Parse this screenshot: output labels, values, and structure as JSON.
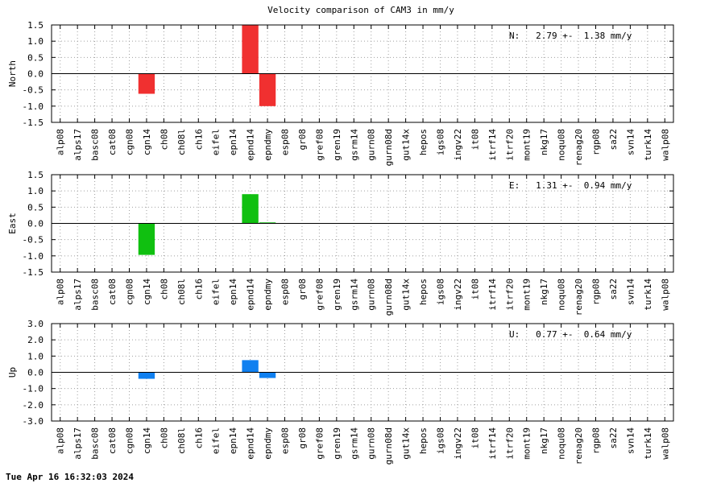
{
  "title": "Velocity comparison of CAM3 in mm/y",
  "footer": "Tue Apr 16 16:32:03 2024",
  "categories": [
    "alp08",
    "alps17",
    "basc08",
    "cat08",
    "cgn08",
    "cgn14",
    "ch08",
    "ch08l",
    "ch16",
    "eifel",
    "epn14",
    "epnd14",
    "epndmy",
    "esp08",
    "gr08",
    "gref08",
    "gren19",
    "gsrm14",
    "gurn08",
    "gurn08d",
    "gut14x",
    "hepos",
    "igs08",
    "ingv22",
    "it08",
    "itrf14",
    "itrf20",
    "mont19",
    "nkg17",
    "noqu08",
    "renag20",
    "rgp08",
    "sa22",
    "svn14",
    "turk14",
    "walp08"
  ],
  "chart_data": [
    {
      "type": "bar",
      "ylabel": "North",
      "ylim": [
        -1.5,
        1.5
      ],
      "yticks": [
        "1.5",
        "1.0",
        "0.5",
        "0.0",
        "-0.5",
        "-1.0",
        "-1.5"
      ],
      "color": "#f03030",
      "stat_text": "N:   2.79 +-  1.38 mm/y",
      "grid": true,
      "values": [
        0,
        0,
        0,
        0,
        0,
        -0.62,
        0,
        0,
        0,
        0,
        0,
        1.5,
        -1.0,
        0,
        0,
        0,
        0,
        0,
        0,
        0,
        0,
        0,
        0,
        0,
        0,
        0,
        0,
        0,
        0,
        0,
        0,
        0,
        0,
        0,
        0,
        0
      ]
    },
    {
      "type": "bar",
      "ylabel": "East",
      "ylim": [
        -1.5,
        1.5
      ],
      "yticks": [
        "1.5",
        "1.0",
        "0.5",
        "0.0",
        "-0.5",
        "-1.0",
        "-1.5"
      ],
      "color": "#10c010",
      "stat_text": "E:   1.31 +-  0.94 mm/y",
      "grid": true,
      "values": [
        0,
        0,
        0,
        0,
        0,
        -0.97,
        0,
        0,
        0,
        0,
        0,
        0.9,
        0.03,
        0,
        0,
        0,
        0,
        0,
        0,
        0,
        0,
        0,
        0,
        0,
        0,
        0,
        0,
        0,
        0,
        0,
        0,
        0,
        0,
        0,
        0,
        0
      ]
    },
    {
      "type": "bar",
      "ylabel": "Up",
      "ylim": [
        -3.0,
        3.0
      ],
      "yticks": [
        "3.0",
        "2.0",
        "1.0",
        "0.0",
        "-1.0",
        "-2.0",
        "-3.0"
      ],
      "color": "#1080f0",
      "stat_text": "U:   0.77 +-  0.64 mm/y",
      "grid": true,
      "values": [
        0,
        0,
        0,
        0,
        0,
        -0.4,
        0,
        0,
        0,
        0,
        0,
        0.75,
        -0.35,
        0,
        0,
        0,
        0,
        0,
        0,
        0,
        0,
        0,
        0,
        0,
        0,
        0,
        0,
        0,
        0,
        0,
        0,
        0,
        0,
        0,
        0,
        0
      ]
    }
  ]
}
